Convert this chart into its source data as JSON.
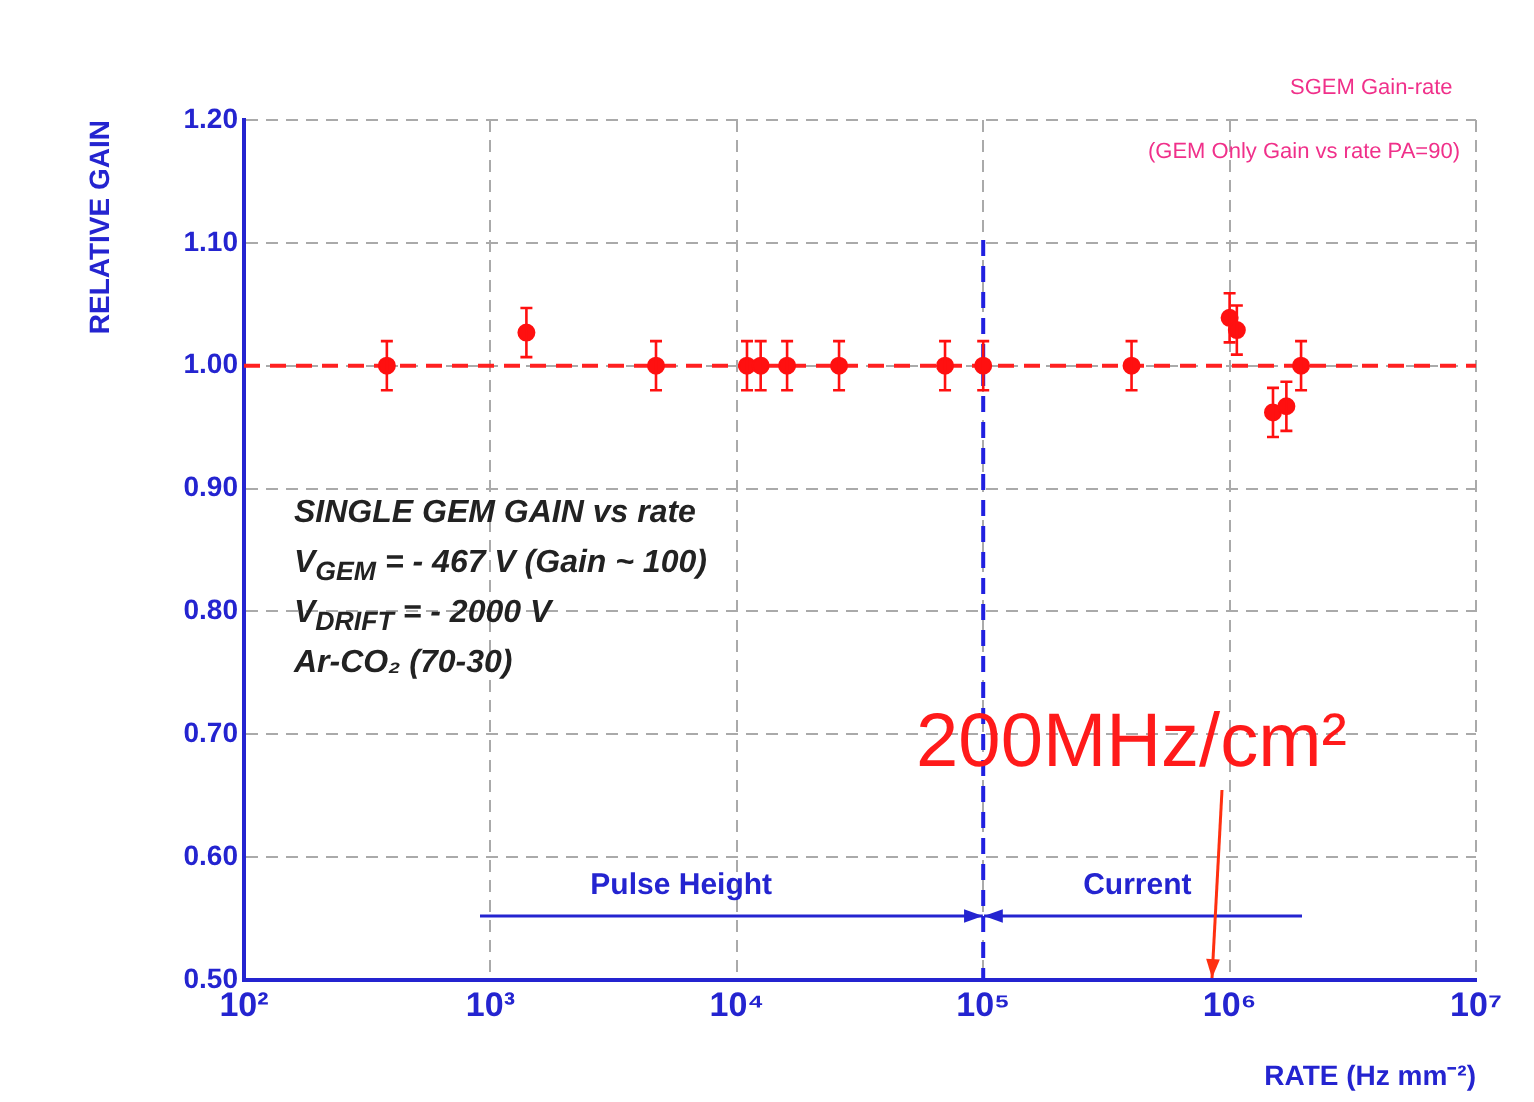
{
  "chart_data": {
    "type": "scatter",
    "title": "SGEM Gain-rate",
    "subtitle": "(GEM Only Gain vs rate PA=90)",
    "xlabel": "RATE (Hz mm⁻²)",
    "ylabel": "RELATIVE GAIN",
    "log": "x",
    "grid": true,
    "marker": "circle",
    "xlim": [
      100,
      10000000
    ],
    "xticks": [
      {
        "value": 100,
        "label": "10²"
      },
      {
        "value": 1000,
        "label": "10³"
      },
      {
        "value": 10000,
        "label": "10⁴"
      },
      {
        "value": 100000,
        "label": "10⁵"
      },
      {
        "value": 1000000,
        "label": "10⁶"
      },
      {
        "value": 10000000,
        "label": "10⁷"
      }
    ],
    "ylim": [
      0.5,
      1.2
    ],
    "yticks": [
      {
        "value": 0.5,
        "label": "0.50"
      },
      {
        "value": 0.6,
        "label": "0.60"
      },
      {
        "value": 0.7,
        "label": "0.70"
      },
      {
        "value": 0.8,
        "label": "0.80"
      },
      {
        "value": 0.9,
        "label": "0.90"
      },
      {
        "value": 1.0,
        "label": "1.00"
      },
      {
        "value": 1.1,
        "label": "1.10"
      },
      {
        "value": 1.2,
        "label": "1.20"
      }
    ],
    "series": [
      {
        "color": "#ff1010",
        "x": [
          380,
          1400,
          4700,
          11000,
          12500,
          16000,
          26000,
          70000,
          100000,
          400000,
          1000000,
          1070000,
          1500000,
          1700000,
          1950000
        ],
        "values": [
          1.0,
          1.027,
          1.0,
          1.0,
          1.0,
          1.0,
          1.0,
          1.0,
          1.0,
          1.0,
          1.039,
          1.029,
          0.962,
          0.967,
          1.0
        ],
        "errors": [
          0.02,
          0.02,
          0.02,
          0.02,
          0.02,
          0.02,
          0.02,
          0.02,
          0.02,
          0.02,
          0.02,
          0.02,
          0.02,
          0.02,
          0.02
        ]
      }
    ],
    "ref_lines": [
      {
        "axis": "y",
        "value": 1.0,
        "color": "#ff2020",
        "line_style": "dashed"
      },
      {
        "axis": "x",
        "value": 100000,
        "color": "#2020e0",
        "line_style": "dashed"
      }
    ],
    "annotations": [
      "SINGLE GEM GAIN vs rate",
      "V$_{GEM}$ = - 467 V  (Gain ~ 100)",
      "V$_{DRIFT}$ = - 2000 V",
      "Ar-CO₂ (70-30)",
      "Pulse Height",
      "Current",
      "200MHz/cm²"
    ]
  }
}
